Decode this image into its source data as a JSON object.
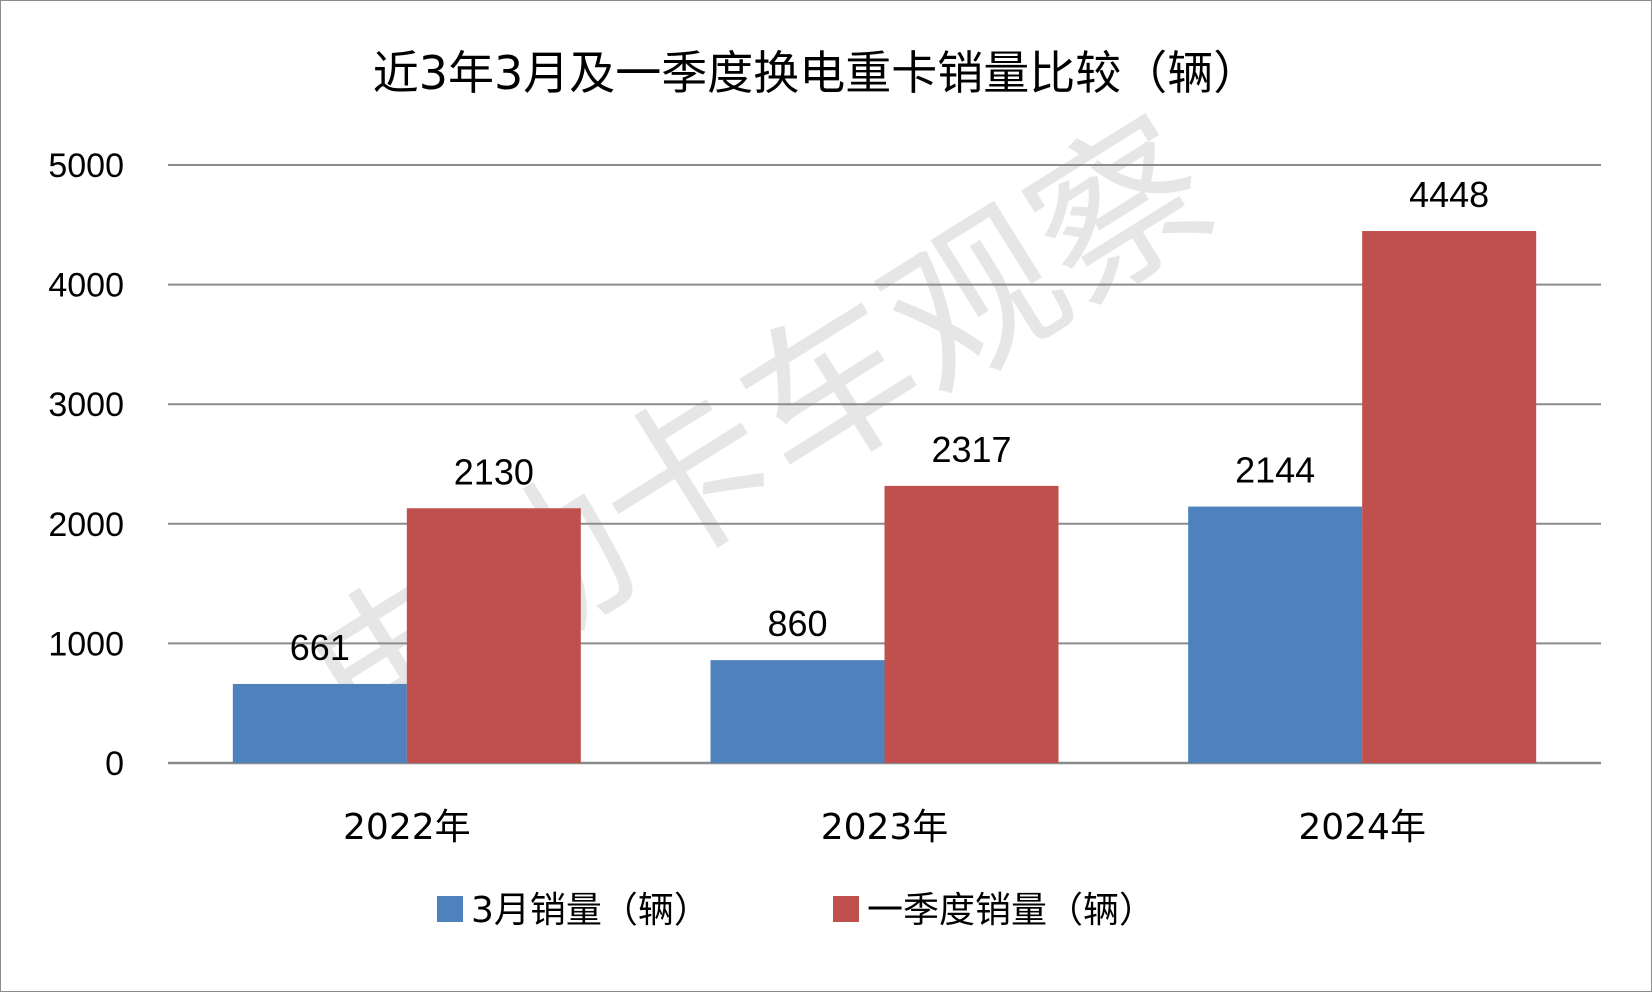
{
  "watermark": "电动卡车观察",
  "colors": {
    "series_march": "#4f81bd",
    "series_q1": "#c0504d",
    "grid": "#8c8c8c"
  },
  "chart_data": {
    "type": "bar",
    "title": "近3年3月及一季度换电重卡销量比较（辆）",
    "categories": [
      "2022年",
      "2023年",
      "2024年"
    ],
    "series": [
      {
        "name": "3月销量（辆）",
        "values": [
          661,
          860,
          2144
        ]
      },
      {
        "name": "一季度销量（辆）",
        "values": [
          2130,
          2317,
          4448
        ]
      }
    ],
    "xlabel": "",
    "ylabel": "",
    "ylim": [
      0,
      5000
    ],
    "yticks": [
      "0",
      "1000",
      "2000",
      "3000",
      "4000",
      "5000"
    ],
    "grid": true,
    "legend_position": "bottom",
    "data_labels": true
  }
}
